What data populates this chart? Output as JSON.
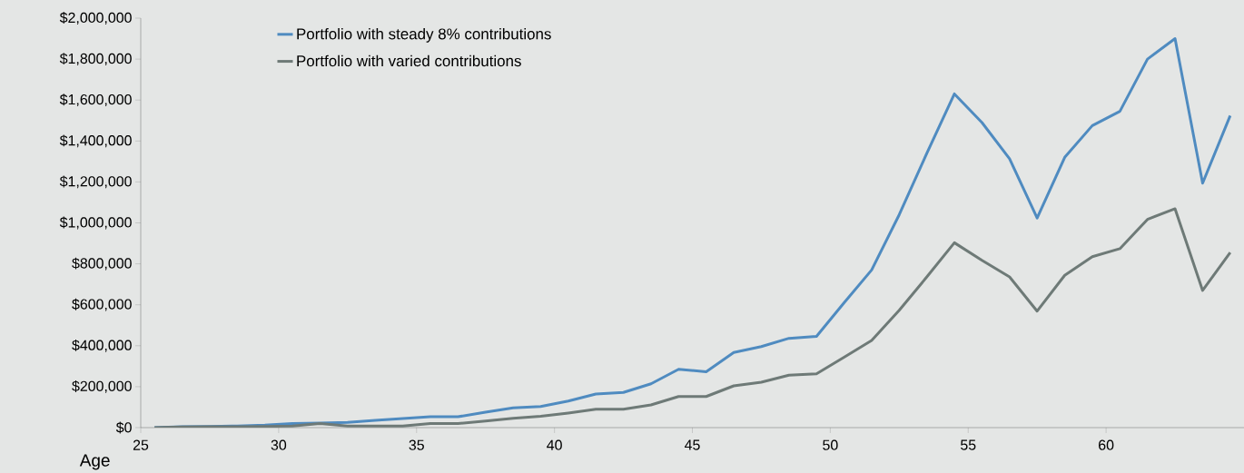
{
  "chart_data": {
    "type": "line",
    "xlabel": "Age",
    "x": [
      25.5,
      26.5,
      27.5,
      28.5,
      29.5,
      30.5,
      31.5,
      32.5,
      33.5,
      34.5,
      35.5,
      36.5,
      37.5,
      38.5,
      39.5,
      40.5,
      41.5,
      42.5,
      43.5,
      44.5,
      45.5,
      46.5,
      47.5,
      48.5,
      49.5,
      50.5,
      51.5,
      52.5,
      53.5,
      54.5,
      55.5,
      56.5,
      57.5,
      58.5,
      59.5,
      60.5,
      61.5,
      62.5,
      63.5,
      64.5
    ],
    "series": [
      {
        "name": "Portfolio with steady 8% contributions",
        "color": "#4f8bc0",
        "values": [
          0,
          4000,
          6000,
          8000,
          12000,
          20000,
          22000,
          26000,
          35000,
          44000,
          53000,
          53000,
          75000,
          96000,
          103000,
          130000,
          164000,
          172000,
          214000,
          285000,
          273000,
          367000,
          396000,
          436000,
          446000,
          610000,
          770000,
          1040000,
          1340000,
          1630000,
          1490000,
          1313000,
          1024000,
          1320000,
          1475000,
          1545000,
          1800000,
          1900000,
          1194000,
          1524000
        ]
      },
      {
        "name": "Portfolio with varied contributions",
        "color": "#6e7a77",
        "values": [
          0,
          3000,
          4000,
          5000,
          6000,
          8000,
          20000,
          8000,
          8000,
          8000,
          20000,
          20000,
          32000,
          45000,
          55000,
          71000,
          90000,
          90000,
          111000,
          152000,
          152000,
          204000,
          222000,
          256000,
          263000,
          344000,
          426000,
          573000,
          736000,
          903000,
          817000,
          736000,
          569000,
          744000,
          835000,
          874000,
          1017000,
          1069000,
          670000,
          855000
        ]
      }
    ],
    "xlim": [
      25,
      65
    ],
    "xticks": [
      25,
      30,
      35,
      40,
      45,
      50,
      55,
      60
    ],
    "ylim": [
      0,
      2000000
    ],
    "yticks": [
      {
        "value": 0,
        "label": "$0"
      },
      {
        "value": 200000,
        "label": "$200,000"
      },
      {
        "value": 400000,
        "label": "$400,000"
      },
      {
        "value": 600000,
        "label": "$600,000"
      },
      {
        "value": 800000,
        "label": "$800,000"
      },
      {
        "value": 1000000,
        "label": "$1,000,000"
      },
      {
        "value": 1200000,
        "label": "$1,200,000"
      },
      {
        "value": 1400000,
        "label": "$1,400,000"
      },
      {
        "value": 1600000,
        "label": "$1,600,000"
      },
      {
        "value": 1800000,
        "label": "$1,800,000"
      },
      {
        "value": 2000000,
        "label": "$2,000,000"
      }
    ],
    "grid": false,
    "legend": "top left",
    "marker": "none",
    "line_style": "solid"
  }
}
